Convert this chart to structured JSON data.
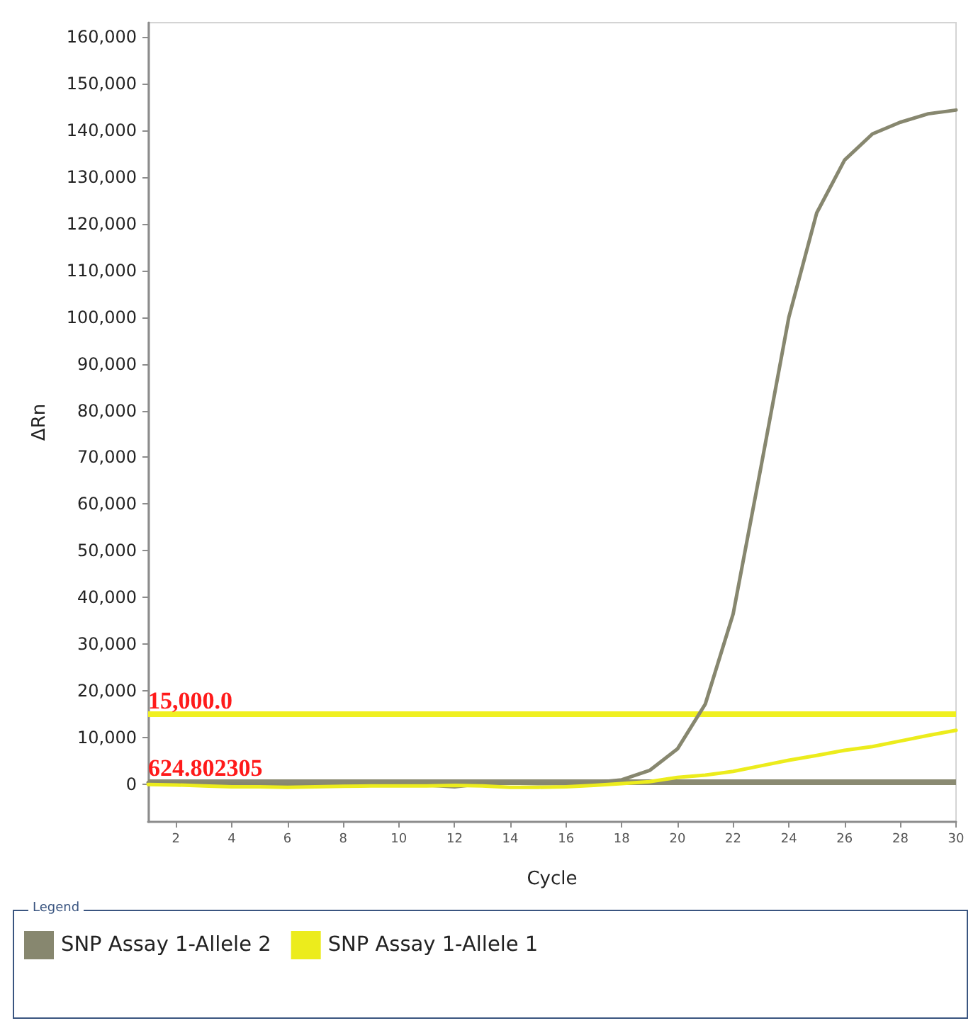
{
  "chart_data": {
    "type": "line",
    "xlabel": "Cycle",
    "ylabel": "ΔRn",
    "legend_title": "Legend",
    "x": [
      1,
      2,
      3,
      4,
      5,
      6,
      7,
      8,
      9,
      10,
      11,
      12,
      13,
      14,
      15,
      16,
      17,
      18,
      19,
      20,
      21,
      22,
      23,
      24,
      25,
      26,
      27,
      28,
      29,
      30
    ],
    "series": [
      {
        "name": "SNP Assay 1-Allele 2",
        "color": "#87876f",
        "values": [
          400,
          300,
          200,
          100,
          0,
          -100,
          -200,
          -300,
          -200,
          0,
          -100,
          -500,
          200,
          300,
          200,
          200,
          400,
          1000,
          3000,
          7600,
          17200,
          36500,
          68000,
          100000,
          122300,
          133600,
          139200,
          141700,
          143500,
          144300
        ]
      },
      {
        "name": "SNP Assay 1-Allele 1",
        "color": "#ecec1c",
        "values": [
          0,
          -100,
          -300,
          -500,
          -500,
          -600,
          -500,
          -400,
          -300,
          -300,
          -300,
          -200,
          -300,
          -600,
          -600,
          -500,
          -200,
          200,
          600,
          1500,
          2000,
          2800,
          4000,
          5200,
          6200,
          7300,
          8100,
          9300,
          10500,
          11600
        ]
      }
    ],
    "xlim": [
      1,
      30
    ],
    "xticks": [
      2,
      4,
      6,
      8,
      10,
      12,
      14,
      16,
      18,
      20,
      22,
      24,
      26,
      28,
      30
    ],
    "ylim": [
      -8000,
      163000
    ],
    "yticks": [
      0,
      {
        "value": 10000,
        "label": "10,000"
      },
      {
        "value": 20000,
        "label": "20,000"
      },
      {
        "value": 30000,
        "label": "30,000"
      },
      {
        "value": 40000,
        "label": "40,000"
      },
      {
        "value": 50000,
        "label": "50,000"
      },
      {
        "value": 60000,
        "label": "60,000"
      },
      {
        "value": 70000,
        "label": "70,000"
      },
      {
        "value": 80000,
        "label": "80,000"
      },
      {
        "value": 90000,
        "label": "90,000"
      },
      {
        "value": 100000,
        "label": "100,000"
      },
      {
        "value": 110000,
        "label": "110,000"
      },
      {
        "value": 120000,
        "label": "120,000"
      },
      {
        "value": 130000,
        "label": "130,000"
      },
      {
        "value": 140000,
        "label": "140,000"
      },
      {
        "value": 150000,
        "label": "150,000"
      },
      {
        "value": 160000,
        "label": "160,000"
      }
    ],
    "ref_lines": [
      {
        "axis": "y",
        "value": 15000,
        "label": "15,000.0",
        "color": "#f0f020"
      },
      {
        "axis": "y",
        "value": 624.802305,
        "label": "624.802305",
        "color": "#8a8a72"
      }
    ],
    "grid": false,
    "legend": "bottom",
    "marker": "none",
    "line_style": "solid"
  }
}
